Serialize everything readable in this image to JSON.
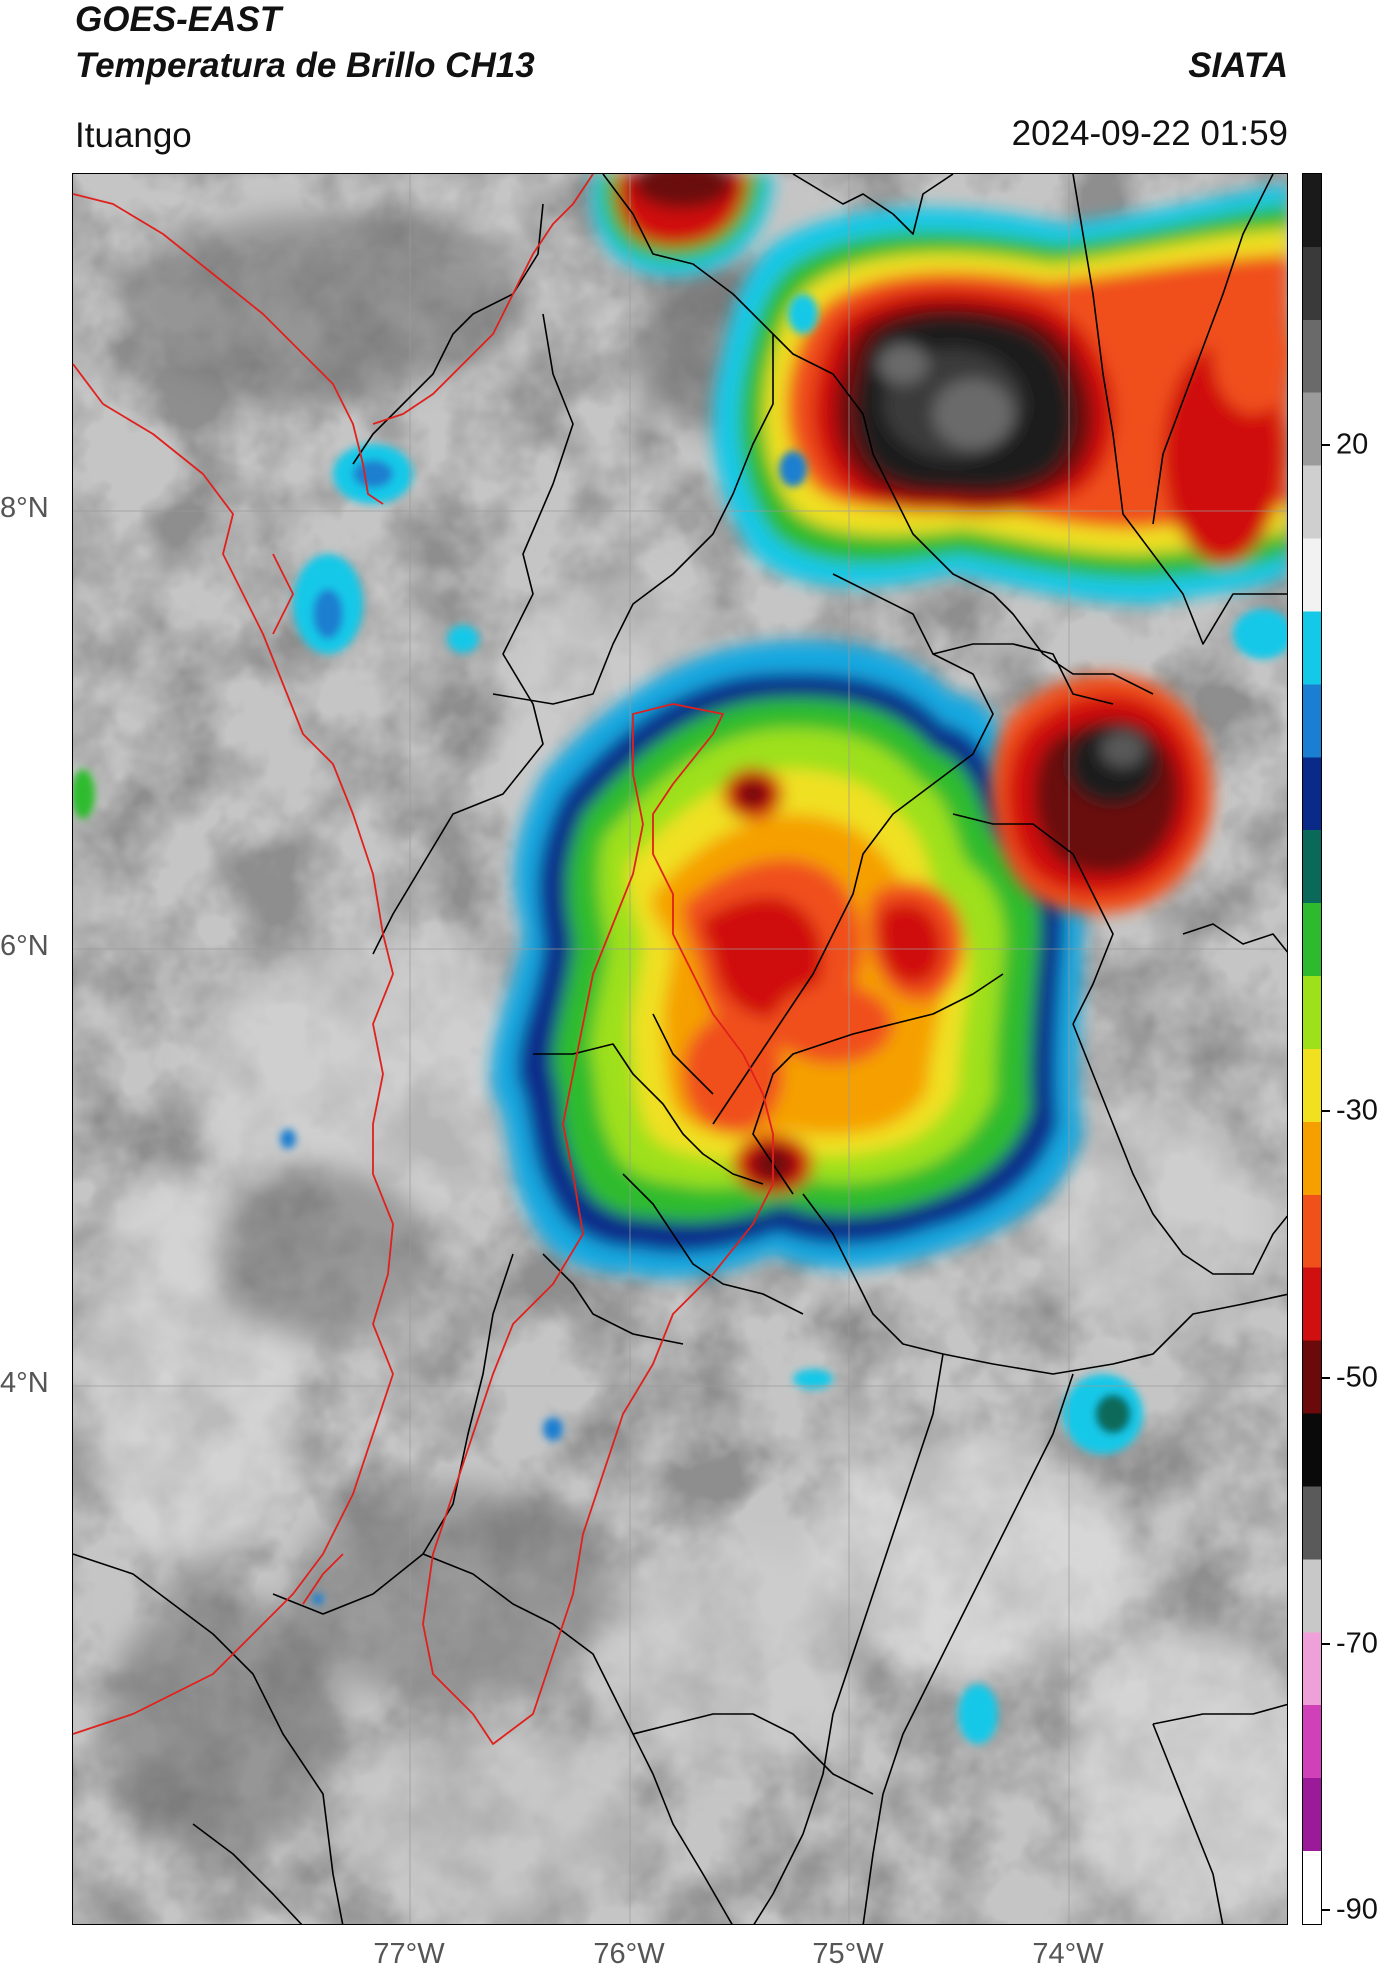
{
  "header": {
    "title_line1": "GOES-EAST",
    "title_line2": "Temperatura de Brillo CH13",
    "organization": "SIATA",
    "location": "Ituango",
    "timestamp": "2024-09-22 01:59"
  },
  "map": {
    "lat_labels": [
      "8°N",
      "6°N",
      "4°N"
    ],
    "lon_labels": [
      "77°W",
      "76°W",
      "75°W",
      "74°W"
    ],
    "border_colors": {
      "country": "#e0201c",
      "department": "#000000",
      "grid": "#9a9a9a"
    }
  },
  "colorbar": {
    "tick_labels": [
      "20",
      "-30",
      "-50",
      "-70",
      "-90"
    ],
    "stops": [
      {
        "color": "#1a1a1a"
      },
      {
        "color": "#3a3a3a"
      },
      {
        "color": "#6a6a6a"
      },
      {
        "color": "#9b9b9b"
      },
      {
        "color": "#cfcfcf"
      },
      {
        "color": "#f2f2f2"
      },
      {
        "color": "#14c8e8"
      },
      {
        "color": "#1a7fd0"
      },
      {
        "color": "#0a2a8a"
      },
      {
        "color": "#0a6a5a"
      },
      {
        "color": "#2dbb2d"
      },
      {
        "color": "#9ee01a"
      },
      {
        "color": "#f0e020"
      },
      {
        "color": "#f5a000"
      },
      {
        "color": "#f0501a"
      },
      {
        "color": "#d01010"
      },
      {
        "color": "#6a0a0a"
      },
      {
        "color": "#0a0a0a"
      },
      {
        "color": "#5a5a5a"
      },
      {
        "color": "#c8c8c8"
      },
      {
        "color": "#f0a0d8"
      },
      {
        "color": "#d040b8"
      },
      {
        "color": "#9a1a9a"
      },
      {
        "color": "#ffffff"
      }
    ]
  }
}
